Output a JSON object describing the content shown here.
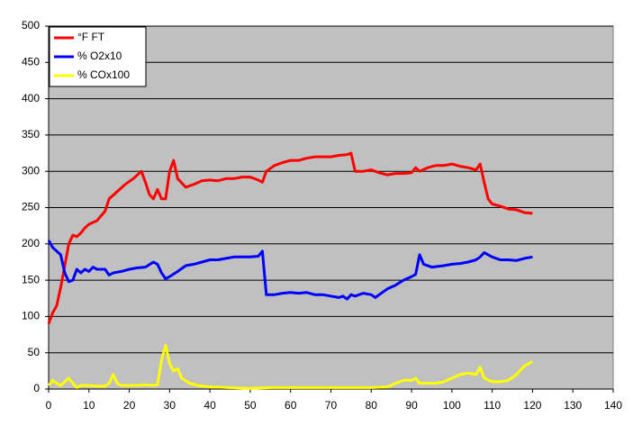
{
  "chart_data": {
    "type": "line",
    "xlim": [
      0,
      140
    ],
    "xticks": [
      0,
      10,
      20,
      30,
      40,
      50,
      60,
      70,
      80,
      90,
      100,
      110,
      120,
      130,
      140
    ],
    "ylim": [
      0,
      500
    ],
    "yticks": [
      0,
      50,
      100,
      150,
      200,
      250,
      300,
      350,
      400,
      450,
      500
    ],
    "grid": true,
    "legend": "top-left",
    "series": [
      {
        "name": "°F FT",
        "color": "#ff0000",
        "x": [
          0,
          1,
          2,
          3,
          4,
          5,
          6,
          7,
          8,
          9,
          10,
          12,
          14,
          15,
          17,
          19,
          21,
          23,
          24,
          25,
          26,
          27,
          28,
          29,
          30,
          31,
          32,
          34,
          36,
          38,
          40,
          42,
          44,
          46,
          48,
          50,
          52,
          53,
          54,
          56,
          58,
          60,
          62,
          64,
          66,
          68,
          70,
          72,
          74,
          75,
          76,
          78,
          80,
          82,
          84,
          86,
          88,
          90,
          91,
          92,
          94,
          96,
          98,
          100,
          102,
          104,
          106,
          107,
          108,
          109,
          110,
          112,
          114,
          116,
          118,
          120
        ],
        "values": [
          90,
          105,
          115,
          140,
          170,
          200,
          212,
          210,
          215,
          222,
          227,
          232,
          245,
          262,
          272,
          282,
          290,
          300,
          285,
          268,
          262,
          275,
          262,
          262,
          300,
          315,
          290,
          278,
          282,
          287,
          288,
          287,
          290,
          290,
          292,
          292,
          288,
          285,
          300,
          308,
          312,
          315,
          315,
          318,
          320,
          320,
          320,
          322,
          323,
          325,
          300,
          300,
          302,
          298,
          295,
          297,
          297,
          298,
          305,
          300,
          305,
          308,
          308,
          310,
          307,
          305,
          302,
          310,
          285,
          262,
          255,
          252,
          248,
          247,
          243,
          242
        ]
      },
      {
        "name": "% O2x10",
        "color": "#0000ff",
        "x": [
          0,
          1,
          2,
          3,
          4,
          5,
          6,
          7,
          8,
          9,
          10,
          11,
          12,
          14,
          15,
          16,
          18,
          20,
          22,
          24,
          26,
          27,
          28,
          29,
          30,
          32,
          34,
          36,
          38,
          40,
          42,
          44,
          46,
          48,
          50,
          52,
          53,
          54,
          56,
          58,
          60,
          62,
          64,
          66,
          68,
          70,
          72,
          73,
          74,
          75,
          76,
          78,
          80,
          81,
          82,
          84,
          86,
          88,
          90,
          91,
          92,
          93,
          95,
          98,
          100,
          102,
          104,
          106,
          107,
          108,
          110,
          112,
          114,
          116,
          118,
          120
        ],
        "values": [
          205,
          195,
          190,
          185,
          160,
          148,
          150,
          165,
          160,
          165,
          162,
          168,
          165,
          165,
          157,
          160,
          162,
          165,
          167,
          168,
          175,
          172,
          160,
          152,
          155,
          162,
          170,
          172,
          175,
          178,
          178,
          180,
          182,
          182,
          182,
          183,
          190,
          130,
          130,
          132,
          133,
          132,
          133,
          130,
          130,
          128,
          126,
          128,
          124,
          130,
          128,
          132,
          130,
          126,
          130,
          138,
          143,
          150,
          155,
          158,
          185,
          172,
          168,
          170,
          172,
          173,
          175,
          178,
          182,
          188,
          182,
          178,
          178,
          177,
          180,
          182
        ]
      },
      {
        "name": "% COx100",
        "color": "#ffff00",
        "x": [
          0,
          1,
          2,
          3,
          4,
          5,
          6,
          7,
          8,
          10,
          12,
          14,
          15,
          16,
          17,
          18,
          20,
          22,
          24,
          26,
          27,
          28,
          29,
          30,
          31,
          32,
          33,
          35,
          37,
          40,
          45,
          50,
          55,
          60,
          65,
          70,
          75,
          80,
          84,
          86,
          88,
          90,
          91,
          92,
          94,
          96,
          98,
          100,
          102,
          104,
          106,
          107,
          108,
          110,
          112,
          114,
          116,
          118,
          120
        ],
        "values": [
          5,
          12,
          8,
          5,
          10,
          15,
          8,
          2,
          5,
          5,
          4,
          4,
          8,
          20,
          8,
          5,
          5,
          5,
          6,
          5,
          6,
          40,
          60,
          35,
          25,
          28,
          15,
          8,
          5,
          3,
          2,
          1,
          2,
          2,
          2,
          2,
          2,
          2,
          3,
          8,
          12,
          12,
          15,
          8,
          8,
          8,
          10,
          15,
          20,
          22,
          20,
          30,
          15,
          10,
          10,
          12,
          20,
          32,
          38
        ]
      }
    ]
  }
}
